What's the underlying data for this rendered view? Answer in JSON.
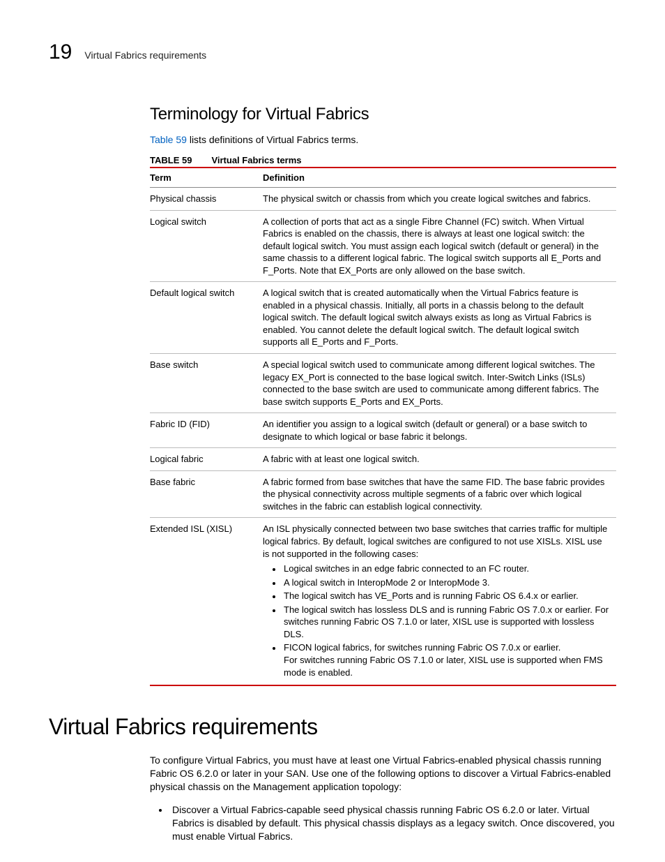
{
  "colors": {
    "rule": "#cc0000",
    "link": "#0061c0",
    "text": "#000000",
    "border_gray": "#bbbbbb"
  },
  "header": {
    "chapter_number": "19",
    "chapter_label": "Virtual Fabrics requirements"
  },
  "section1": {
    "title": "Terminology for Virtual Fabrics",
    "intro_link": "Table 59",
    "intro_rest": " lists definitions of Virtual Fabrics terms.",
    "table_label": "TABLE 59",
    "table_title": "Virtual Fabrics terms",
    "columns": [
      "Term",
      "Definition"
    ],
    "rows": [
      {
        "term": "Physical chassis",
        "definition": "The physical switch or chassis from which you create logical switches and fabrics."
      },
      {
        "term": "Logical switch",
        "definition": "A collection of ports that act as a single Fibre Channel (FC) switch. When Virtual Fabrics is enabled on the chassis, there is always at least one logical switch: the default logical switch. You must assign each logical switch (default or general) in the same chassis to a different logical fabric. The logical switch supports all E_Ports and F_Ports. Note that EX_Ports are only allowed on the base switch."
      },
      {
        "term": "Default logical switch",
        "definition": "A logical switch that is created automatically when the Virtual Fabrics feature is enabled in a physical chassis. Initially, all ports in a chassis belong to the default logical switch. The default logical switch always exists as long as Virtual Fabrics is enabled. You cannot delete the default logical switch. The default logical switch supports all E_Ports and F_Ports."
      },
      {
        "term": "Base switch",
        "definition": "A special logical switch used to communicate among different logical switches. The legacy EX_Port is connected to the base logical switch. Inter-Switch Links (ISLs) connected to the base switch are used to communicate among different fabrics. The base switch supports E_Ports and EX_Ports."
      },
      {
        "term": "Fabric ID (FID)",
        "definition": "An identifier you assign to a logical switch (default or general) or a base switch to designate to which logical or base fabric it belongs."
      },
      {
        "term": "Logical fabric",
        "definition": "A fabric with at least one logical switch."
      },
      {
        "term": "Base fabric",
        "definition": "A fabric formed from base switches that have the same FID. The base fabric provides the physical connectivity across multiple segments of a fabric over which logical switches in the fabric can establish logical connectivity."
      },
      {
        "term": "Extended ISL (XISL)",
        "definition_intro": "An ISL physically connected between two base switches that carries traffic for multiple logical fabrics. By default, logical switches are configured to not use XISLs. XISL use is not supported in the following cases:",
        "bullets": [
          "Logical switches in an edge fabric connected to an FC router.",
          "A logical switch in InteropMode 2 or InteropMode 3.",
          "The logical switch has VE_Ports and is running Fabric OS 6.4.x or earlier.",
          "The logical switch has lossless DLS and is running Fabric OS 7.0.x or earlier. For switches running Fabric OS 7.1.0 or later, XISL use is supported with lossless DLS.",
          "FICON logical fabrics, for switches running Fabric OS 7.0.x or earlier.\nFor switches running Fabric OS 7.1.0 or later, XISL use is supported when FMS mode is enabled."
        ]
      }
    ]
  },
  "section2": {
    "title": "Virtual Fabrics requirements",
    "para": "To configure Virtual Fabrics, you must have at least one Virtual Fabrics-enabled physical chassis running Fabric OS 6.2.0 or later in your SAN. Use one of the following options to discover a Virtual Fabrics-enabled physical chassis on the Management application topology:",
    "bullets": [
      "Discover a Virtual Fabrics-capable seed physical chassis running Fabric OS 6.2.0 or later. Virtual Fabrics is disabled by default. This physical chassis displays as a legacy switch. Once discovered, you must enable Virtual Fabrics."
    ]
  }
}
